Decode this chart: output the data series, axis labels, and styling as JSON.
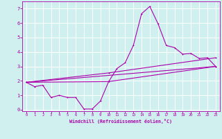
{
  "xlabel": "Windchill (Refroidissement éolien,°C)",
  "bg_color": "#cff0ee",
  "line_color": "#aa00aa",
  "grid_color": "#ffffff",
  "xlim": [
    -0.5,
    23.5
  ],
  "ylim": [
    -0.1,
    7.5
  ],
  "xticks": [
    0,
    1,
    2,
    3,
    4,
    5,
    6,
    7,
    8,
    9,
    10,
    11,
    12,
    13,
    14,
    15,
    16,
    17,
    18,
    19,
    20,
    21,
    22,
    23
  ],
  "yticks": [
    0,
    1,
    2,
    3,
    4,
    5,
    6,
    7
  ],
  "series1_x": [
    0,
    1,
    2,
    3,
    4,
    5,
    6,
    7,
    8,
    9,
    10,
    11,
    12,
    13,
    14,
    15,
    16,
    17,
    18,
    19,
    20,
    21,
    22,
    23
  ],
  "series1_y": [
    1.9,
    1.6,
    1.7,
    0.85,
    1.0,
    0.85,
    0.85,
    0.05,
    0.05,
    0.6,
    1.95,
    2.85,
    3.25,
    4.45,
    6.65,
    7.15,
    5.95,
    4.45,
    4.3,
    3.85,
    3.9,
    3.55,
    3.6,
    3.0
  ],
  "series2_x": [
    0,
    10,
    23
  ],
  "series2_y": [
    1.9,
    1.95,
    3.0
  ],
  "series3_x": [
    0,
    23
  ],
  "series3_y": [
    1.9,
    3.0
  ],
  "series4_x": [
    0,
    10,
    23
  ],
  "series4_y": [
    1.9,
    2.55,
    3.6
  ]
}
